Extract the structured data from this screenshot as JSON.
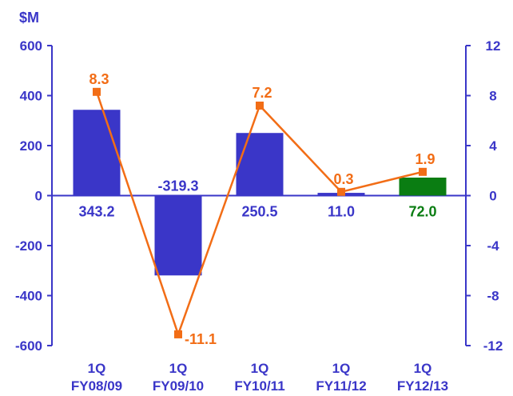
{
  "chart_data": {
    "type": "bar",
    "left_axis_unit": "$M",
    "categories": [
      [
        "1Q",
        "FY08/09"
      ],
      [
        "1Q",
        "FY09/10"
      ],
      [
        "1Q",
        "FY10/11"
      ],
      [
        "1Q",
        "FY11/12"
      ],
      [
        "1Q",
        "FY12/13"
      ]
    ],
    "bars": {
      "values": [
        343.2,
        -319.3,
        250.5,
        11.0,
        72.0
      ],
      "labels": [
        "343.2",
        "-319.3",
        "250.5",
        "11.0",
        "72.0"
      ],
      "colors": [
        "#3a36c8",
        "#3a36c8",
        "#3a36c8",
        "#3a36c8",
        "#0a7d12"
      ],
      "label_colors": [
        "#3a36c8",
        "#3a36c8",
        "#3a36c8",
        "#3a36c8",
        "#0a7d12"
      ],
      "axis": "left"
    },
    "line": {
      "values": [
        8.3,
        -11.1,
        7.2,
        0.3,
        1.9
      ],
      "labels": [
        "8.3",
        "-11.1",
        "7.2",
        "0.3",
        "1.9"
      ],
      "color": "#f26d16",
      "axis": "right",
      "marker": "square"
    },
    "left_axis": {
      "ylim": [
        -600,
        600
      ],
      "ticks": [
        600,
        400,
        200,
        0,
        -200,
        -400,
        -600
      ],
      "tick_labels": [
        "600",
        "400",
        "200",
        "0",
        "-200",
        "-400",
        "-600"
      ],
      "color": "#3a36c8"
    },
    "right_axis": {
      "ylim": [
        -12,
        12
      ],
      "ticks": [
        12,
        8,
        4,
        0,
        -4,
        -8,
        -12
      ],
      "tick_labels": [
        "12",
        "8",
        "4",
        "0",
        "-4",
        "-8",
        "-12"
      ],
      "color": "#3a36c8"
    },
    "grid": false,
    "legend": "none"
  }
}
